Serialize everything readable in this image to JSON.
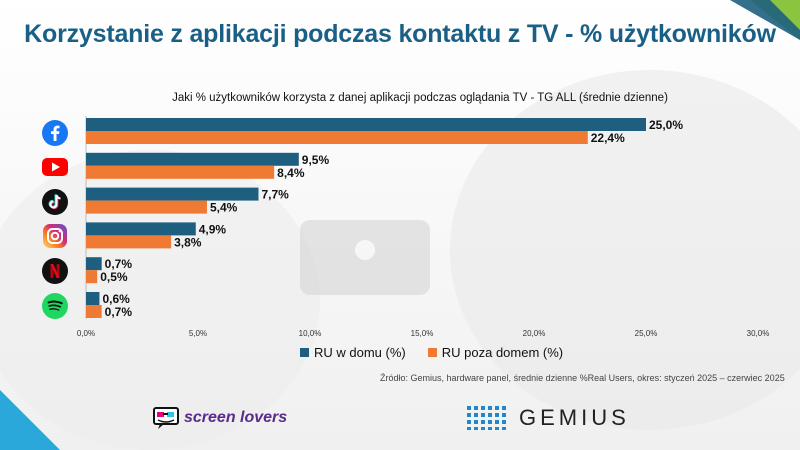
{
  "title": "Korzystanie z aplikacji podczas kontaktu z TV - % użytkowników",
  "chart_data": {
    "type": "bar",
    "orientation": "horizontal",
    "title": "Jaki % użytkowników korzysta z danej aplikacji podczas oglądania TV - TG ALL (średnie dzienne)",
    "categories": [
      "Facebook",
      "YouTube",
      "TikTok",
      "Instagram",
      "Netflix",
      "Spotify"
    ],
    "series": [
      {
        "name": "RU w domu (%)",
        "color": "#1e5f80",
        "values": [
          25.0,
          9.5,
          7.7,
          4.9,
          0.7,
          0.6
        ],
        "labels": [
          "25,0%",
          "9,5%",
          "7,7%",
          "4,9%",
          "0,7%",
          "0,6%"
        ]
      },
      {
        "name": "RU poza domem (%)",
        "color": "#ee7a33",
        "values": [
          22.4,
          8.4,
          5.4,
          3.8,
          0.5,
          0.7
        ],
        "labels": [
          "22,4%",
          "8,4%",
          "5,4%",
          "3,8%",
          "0,5%",
          "0,7%"
        ]
      }
    ],
    "xlim": [
      0,
      30
    ],
    "xticks": [
      0,
      5,
      10,
      15,
      20,
      25,
      30
    ],
    "xtick_labels": [
      "0,0%",
      "5,0%",
      "10,0%",
      "15,0%",
      "20,0%",
      "25,0%",
      "30,0%"
    ],
    "legend_position": "bottom"
  },
  "source": "Źródło: Gemius, hardware panel, średnie dzienne %Real Users, okres: styczeń 2025 – czerwiec 2025",
  "logos": {
    "screenlovers": "screen lovers",
    "gemius": "GEMIUS"
  },
  "colors": {
    "title": "#1a5f86",
    "accent_blue": "#1e5f80",
    "accent_orange": "#ee7a33"
  }
}
